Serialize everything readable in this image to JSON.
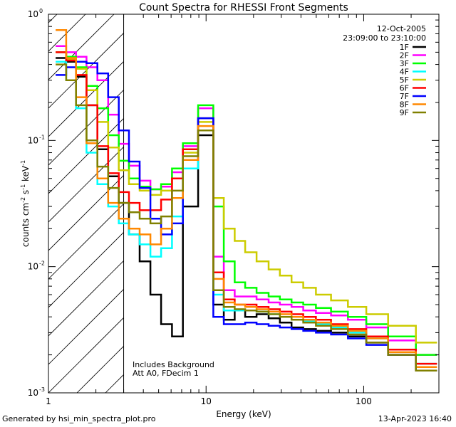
{
  "chart_data": {
    "type": "line",
    "title": "Count Spectra for RHESSI Front Segments",
    "xlabel": "Energy (keV)",
    "ylabel": "counts cm-2 s-1 keV-1",
    "ylabel_base": "counts cm",
    "ylabel_sup1": "-2",
    "ylabel_mid": " s",
    "ylabel_sup2": "-1",
    "ylabel_end": " keV",
    "ylabel_sup3": "-1",
    "xscale": "log",
    "yscale": "log",
    "xlim": [
      1.0,
      300.0
    ],
    "ylim": [
      0.001,
      1.0
    ],
    "x_ticks": [
      {
        "value": 1,
        "label": "1"
      },
      {
        "value": 10,
        "label": "10"
      },
      {
        "value": 100,
        "label": "100"
      }
    ],
    "y_ticks": [
      {
        "value": 0.001,
        "base": "10",
        "exp": "-3"
      },
      {
        "value": 0.01,
        "base": "10",
        "exp": "-2"
      },
      {
        "value": 0.1,
        "base": "10",
        "exp": "-1"
      },
      {
        "value": 1,
        "base": "10",
        "exp": "0"
      }
    ],
    "date_label": "12-Oct-2005",
    "time_label": "23:09:00 to 23:10:00",
    "annotations": [
      "Includes Background",
      "Att A0, FDecim 1"
    ],
    "shaded_region": {
      "xmin": 1.0,
      "xmax": 3.0,
      "style": "hatched"
    },
    "legend_position": "top-right",
    "series": [
      {
        "name": "1F",
        "color": "#000000",
        "values": [
          0.45,
          0.42,
          0.32,
          0.19,
          0.085,
          0.052,
          0.032,
          0.018,
          0.011,
          0.006,
          0.0035,
          0.0028,
          0.03,
          0.11,
          0.005,
          0.0038,
          0.0045,
          0.004,
          0.0042,
          0.0039,
          0.0036,
          0.0033,
          0.0032,
          0.0031,
          0.003,
          0.0028,
          0.0025,
          0.002,
          0.0015
        ]
      },
      {
        "name": "2F",
        "color": "#ff00ff",
        "values": [
          0.56,
          0.5,
          0.46,
          0.38,
          0.3,
          0.16,
          0.094,
          0.063,
          0.048,
          0.041,
          0.043,
          0.056,
          0.09,
          0.18,
          0.012,
          0.0065,
          0.0058,
          0.0058,
          0.0055,
          0.0052,
          0.005,
          0.0048,
          0.0045,
          0.0043,
          0.0041,
          0.0038,
          0.0033,
          0.0026,
          0.002
        ]
      },
      {
        "name": "3F",
        "color": "#00ff00",
        "values": [
          0.5,
          0.46,
          0.38,
          0.27,
          0.18,
          0.11,
          0.069,
          0.05,
          0.043,
          0.041,
          0.045,
          0.06,
          0.095,
          0.19,
          0.03,
          0.011,
          0.0075,
          0.0068,
          0.0062,
          0.0058,
          0.0055,
          0.0052,
          0.005,
          0.0047,
          0.0044,
          0.004,
          0.0035,
          0.0028,
          0.002
        ]
      },
      {
        "name": "4F",
        "color": "#00ffff",
        "values": [
          0.42,
          0.3,
          0.18,
          0.08,
          0.045,
          0.03,
          0.022,
          0.018,
          0.015,
          0.012,
          0.014,
          0.025,
          0.06,
          0.15,
          0.006,
          0.0045,
          0.0045,
          0.0045,
          0.0044,
          0.0042,
          0.004,
          0.0038,
          0.0037,
          0.0035,
          0.0033,
          0.003,
          0.0027,
          0.0022,
          0.0017
        ]
      },
      {
        "name": "5F",
        "color": "#cccc00",
        "values": [
          0.5,
          0.44,
          0.37,
          0.25,
          0.14,
          0.088,
          0.058,
          0.045,
          0.04,
          0.037,
          0.04,
          0.05,
          0.08,
          0.14,
          0.035,
          0.02,
          0.016,
          0.013,
          0.011,
          0.0095,
          0.0085,
          0.0075,
          0.0068,
          0.006,
          0.0054,
          0.0048,
          0.0042,
          0.0034,
          0.0025
        ]
      },
      {
        "name": "6F",
        "color": "#ff0000",
        "values": [
          0.5,
          0.43,
          0.33,
          0.19,
          0.09,
          0.055,
          0.039,
          0.032,
          0.028,
          0.028,
          0.034,
          0.05,
          0.085,
          0.15,
          0.009,
          0.0055,
          0.005,
          0.005,
          0.0048,
          0.0046,
          0.0044,
          0.0042,
          0.004,
          0.0038,
          0.0035,
          0.0032,
          0.0028,
          0.0022,
          0.0017
        ]
      },
      {
        "name": "7F",
        "color": "#0000ff",
        "values": [
          0.33,
          0.38,
          0.42,
          0.41,
          0.34,
          0.22,
          0.12,
          0.068,
          0.042,
          0.024,
          0.018,
          0.022,
          0.07,
          0.15,
          0.004,
          0.0035,
          0.0035,
          0.0036,
          0.0035,
          0.0034,
          0.0033,
          0.0032,
          0.0031,
          0.003,
          0.0029,
          0.0027,
          0.0024,
          0.002,
          0.0015
        ]
      },
      {
        "name": "8F",
        "color": "#ff8800",
        "values": [
          0.75,
          0.45,
          0.22,
          0.095,
          0.05,
          0.032,
          0.024,
          0.02,
          0.018,
          0.015,
          0.02,
          0.035,
          0.07,
          0.13,
          0.008,
          0.0052,
          0.005,
          0.0048,
          0.0046,
          0.0044,
          0.0042,
          0.004,
          0.0038,
          0.0036,
          0.0034,
          0.0031,
          0.0027,
          0.0021,
          0.0016
        ]
      },
      {
        "name": "9F",
        "color": "#808000",
        "values": [
          0.4,
          0.3,
          0.19,
          0.1,
          0.062,
          0.042,
          0.032,
          0.027,
          0.024,
          0.022,
          0.025,
          0.04,
          0.075,
          0.12,
          0.0065,
          0.0048,
          0.0046,
          0.0045,
          0.0044,
          0.0042,
          0.004,
          0.0038,
          0.0036,
          0.0034,
          0.0032,
          0.0029,
          0.0025,
          0.002,
          0.0015
        ]
      }
    ],
    "x": [
      1.2,
      1.4,
      1.6,
      1.9,
      2.2,
      2.6,
      3.0,
      3.5,
      4.1,
      4.8,
      5.6,
      6.6,
      7.7,
      10.3,
      12.0,
      14.0,
      16.5,
      19.0,
      23.0,
      27.0,
      32.0,
      38.0,
      45.0,
      55.0,
      70.0,
      90.0,
      120.0,
      170.0,
      270.0
    ]
  },
  "footer": {
    "generated_by": "Generated by hsi_min_spectra_plot.pro",
    "timestamp": "13-Apr-2023 16:40"
  }
}
